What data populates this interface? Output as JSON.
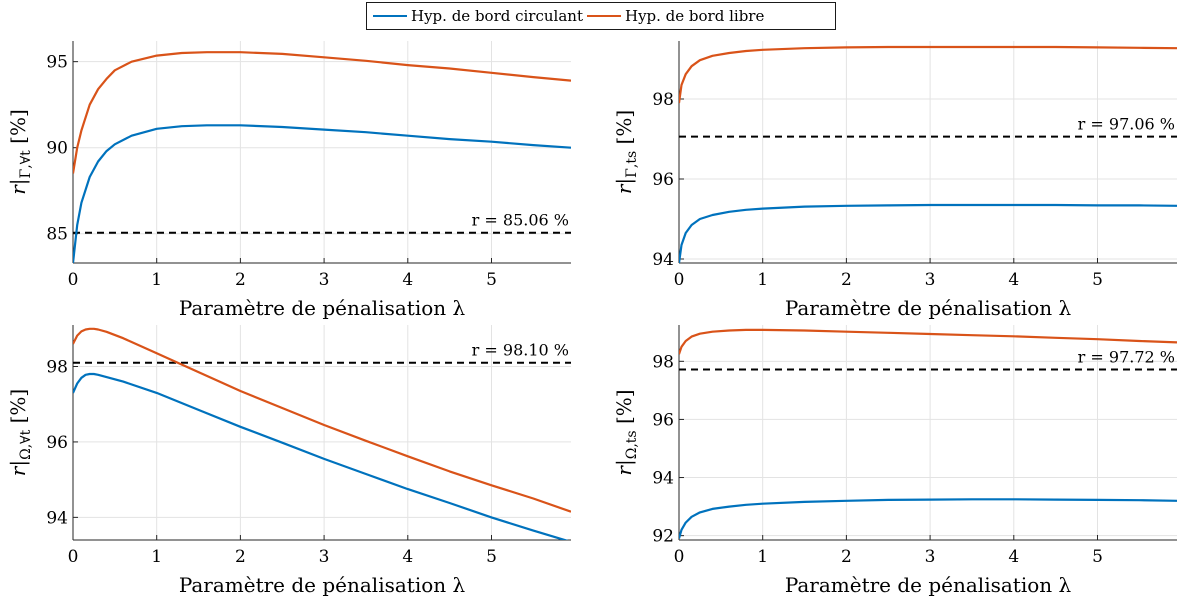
{
  "legend": {
    "items": [
      {
        "label": "Hyp. de bord circulant",
        "color": "#0072BD"
      },
      {
        "label": "Hyp. de bord libre",
        "color": "#D95319"
      }
    ]
  },
  "chart_data": [
    {
      "type": "line",
      "xlabel": "Paramètre de pénalisation λ",
      "ylabel": "r|Γ,∀t [%]",
      "xlim": [
        0,
        5.95
      ],
      "ylim": [
        83.3,
        96.2
      ],
      "xticks": [
        0,
        1,
        2,
        3,
        4,
        5
      ],
      "yticks": [
        85,
        90,
        95
      ],
      "grid": true,
      "series": [
        {
          "name": "Hyp. de bord circulant",
          "color": "#0072BD",
          "x": [
            0,
            0.05,
            0.1,
            0.2,
            0.3,
            0.4,
            0.5,
            0.7,
            1.0,
            1.3,
            1.6,
            2.0,
            2.5,
            3.0,
            3.5,
            4.0,
            4.5,
            5.0,
            5.5,
            5.95
          ],
          "y": [
            83.3,
            85.5,
            86.8,
            88.3,
            89.2,
            89.8,
            90.2,
            90.7,
            91.1,
            91.25,
            91.3,
            91.3,
            91.2,
            91.05,
            90.9,
            90.7,
            90.5,
            90.35,
            90.15,
            90.0
          ]
        },
        {
          "name": "Hyp. de bord libre",
          "color": "#D95319",
          "x": [
            0,
            0.05,
            0.1,
            0.2,
            0.3,
            0.4,
            0.5,
            0.7,
            1.0,
            1.3,
            1.6,
            2.0,
            2.5,
            3.0,
            3.5,
            4.0,
            4.5,
            5.0,
            5.5,
            5.95
          ],
          "y": [
            88.5,
            90.0,
            91.0,
            92.5,
            93.4,
            94.0,
            94.5,
            95.0,
            95.35,
            95.5,
            95.55,
            95.55,
            95.45,
            95.25,
            95.05,
            94.8,
            94.6,
            94.35,
            94.1,
            93.9
          ]
        }
      ],
      "reference": {
        "y": 85.06,
        "label": "r = 85.06 %"
      }
    },
    {
      "type": "line",
      "xlabel": "Paramètre de pénalisation λ",
      "ylabel": "r|Γ,ts [%]",
      "xlim": [
        0,
        5.95
      ],
      "ylim": [
        93.9,
        99.45
      ],
      "xticks": [
        0,
        1,
        2,
        3,
        4,
        5
      ],
      "yticks": [
        94,
        96,
        98
      ],
      "grid": true,
      "series": [
        {
          "name": "Hyp. de bord circulant",
          "color": "#0072BD",
          "x": [
            0,
            0.03,
            0.08,
            0.15,
            0.25,
            0.4,
            0.6,
            0.8,
            1.0,
            1.5,
            2.0,
            2.5,
            3.0,
            3.5,
            4.0,
            4.5,
            5.0,
            5.5,
            5.95
          ],
          "y": [
            93.9,
            94.35,
            94.65,
            94.85,
            95.0,
            95.1,
            95.18,
            95.23,
            95.26,
            95.31,
            95.33,
            95.34,
            95.35,
            95.35,
            95.35,
            95.35,
            95.34,
            95.34,
            95.33
          ]
        },
        {
          "name": "Hyp. de bord libre",
          "color": "#D95319",
          "x": [
            0,
            0.03,
            0.08,
            0.15,
            0.25,
            0.4,
            0.6,
            0.8,
            1.0,
            1.5,
            2.0,
            2.5,
            3.0,
            3.5,
            4.0,
            4.5,
            5.0,
            5.5,
            5.95
          ],
          "y": [
            97.9,
            98.35,
            98.62,
            98.82,
            98.97,
            99.08,
            99.15,
            99.2,
            99.23,
            99.27,
            99.29,
            99.3,
            99.3,
            99.3,
            99.3,
            99.3,
            99.29,
            99.28,
            99.27
          ]
        }
      ],
      "reference": {
        "y": 97.06,
        "label": "r = 97.06 %"
      }
    },
    {
      "type": "line",
      "xlabel": "Paramètre de pénalisation λ",
      "ylabel": "r|Ω,∀t [%]",
      "xlim": [
        0,
        5.95
      ],
      "ylim": [
        93.4,
        99.1
      ],
      "xticks": [
        0,
        1,
        2,
        3,
        4,
        5
      ],
      "yticks": [
        94,
        96,
        98
      ],
      "grid": true,
      "series": [
        {
          "name": "Hyp. de bord circulant",
          "color": "#0072BD",
          "x": [
            0,
            0.05,
            0.1,
            0.15,
            0.2,
            0.25,
            0.3,
            0.4,
            0.6,
            1.0,
            1.5,
            2.0,
            2.5,
            3.0,
            3.5,
            4.0,
            4.5,
            5.0,
            5.5,
            5.95
          ],
          "y": [
            97.3,
            97.55,
            97.7,
            97.78,
            97.8,
            97.8,
            97.78,
            97.72,
            97.6,
            97.3,
            96.85,
            96.4,
            95.98,
            95.55,
            95.15,
            94.75,
            94.38,
            94.0,
            93.65,
            93.35
          ]
        },
        {
          "name": "Hyp. de bord libre",
          "color": "#D95319",
          "x": [
            0,
            0.05,
            0.1,
            0.15,
            0.2,
            0.25,
            0.3,
            0.4,
            0.6,
            1.0,
            1.5,
            2.0,
            2.5,
            3.0,
            3.5,
            4.0,
            4.5,
            5.0,
            5.5,
            5.95
          ],
          "y": [
            98.6,
            98.82,
            98.93,
            98.98,
            99.0,
            99.0,
            98.98,
            98.92,
            98.75,
            98.35,
            97.85,
            97.35,
            96.9,
            96.45,
            96.03,
            95.62,
            95.22,
            94.85,
            94.5,
            94.15
          ]
        }
      ],
      "reference": {
        "y": 98.1,
        "label": "r = 98.10 %"
      }
    },
    {
      "type": "line",
      "xlabel": "Paramètre de pénalisation λ",
      "ylabel": "r|Ω,ts [%]",
      "xlim": [
        0,
        5.95
      ],
      "ylim": [
        91.85,
        99.25
      ],
      "xticks": [
        0,
        1,
        2,
        3,
        4,
        5
      ],
      "yticks": [
        92,
        94,
        96,
        98
      ],
      "grid": true,
      "series": [
        {
          "name": "Hyp. de bord circulant",
          "color": "#0072BD",
          "x": [
            0,
            0.03,
            0.08,
            0.15,
            0.25,
            0.4,
            0.6,
            0.8,
            1.0,
            1.5,
            2.0,
            2.5,
            3.0,
            3.5,
            4.0,
            4.5,
            5.0,
            5.5,
            5.95
          ],
          "y": [
            91.9,
            92.2,
            92.45,
            92.65,
            92.8,
            92.92,
            93.0,
            93.06,
            93.1,
            93.16,
            93.2,
            93.23,
            93.24,
            93.25,
            93.25,
            93.24,
            93.23,
            93.22,
            93.2
          ]
        },
        {
          "name": "Hyp. de bord libre",
          "color": "#D95319",
          "x": [
            0,
            0.03,
            0.08,
            0.15,
            0.25,
            0.4,
            0.6,
            0.8,
            1.0,
            1.5,
            2.0,
            2.5,
            3.0,
            3.5,
            4.0,
            4.5,
            5.0,
            5.5,
            5.95
          ],
          "y": [
            98.25,
            98.5,
            98.7,
            98.85,
            98.95,
            99.02,
            99.06,
            99.08,
            99.08,
            99.06,
            99.02,
            98.98,
            98.94,
            98.9,
            98.86,
            98.81,
            98.76,
            98.7,
            98.65
          ]
        }
      ],
      "reference": {
        "y": 97.72,
        "label": "r = 97.72 %"
      }
    }
  ]
}
